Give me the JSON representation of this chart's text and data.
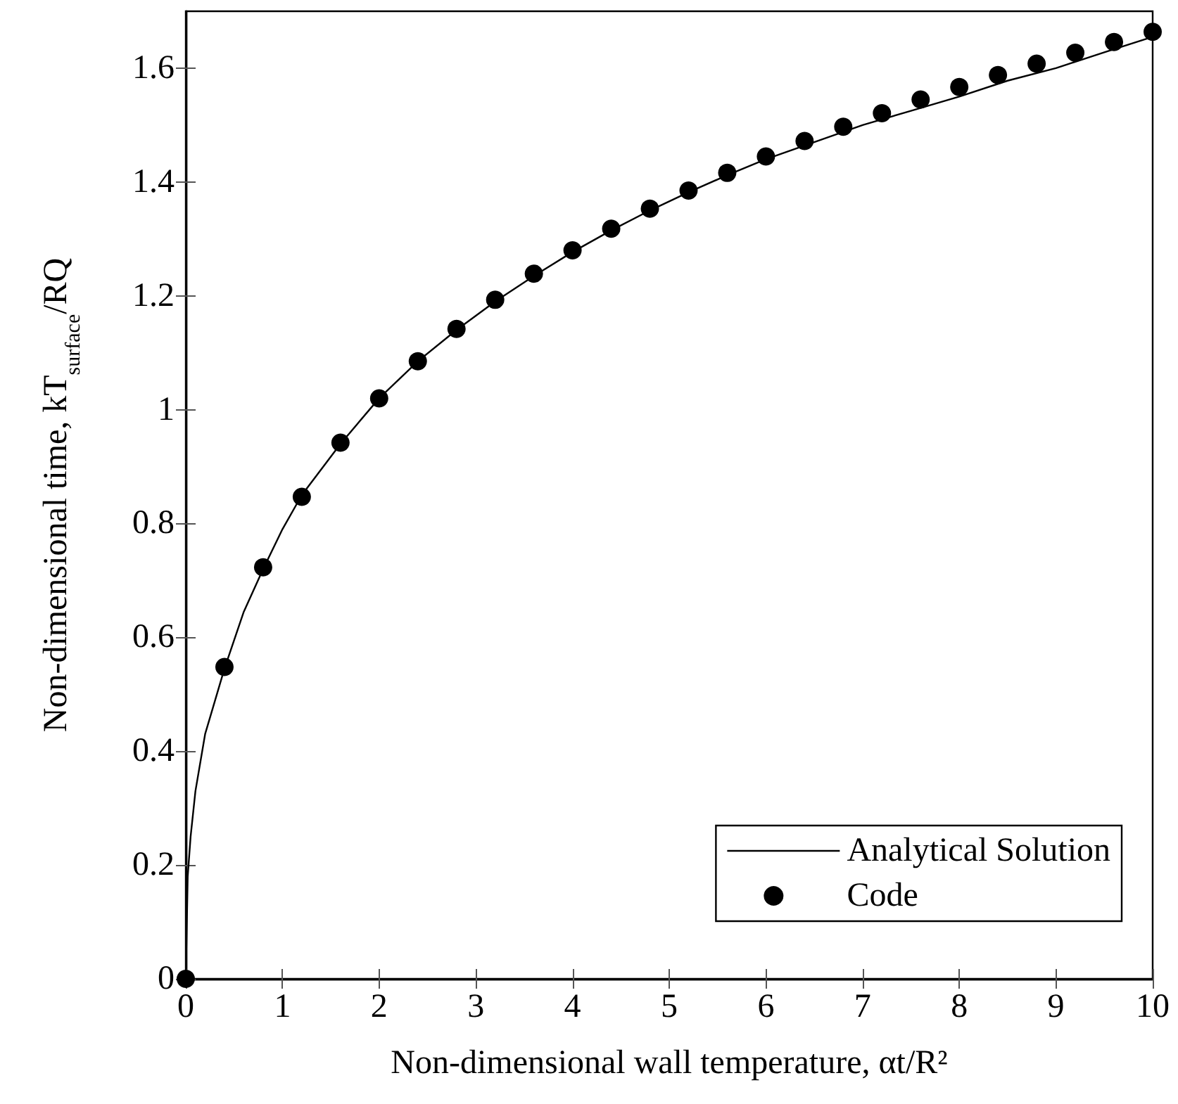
{
  "chart_data": {
    "type": "line",
    "xlabel": "Non-dimensional wall temperature, αt/R²",
    "ylabel": "Non-dimensional time, kT$_{surface}$/RQ",
    "xlim": [
      0,
      10
    ],
    "xticks": [
      0,
      1,
      2,
      3,
      4,
      5,
      6,
      7,
      8,
      9,
      10
    ],
    "ylim": [
      0,
      1.7
    ],
    "yticks": [
      0,
      0.2,
      0.4,
      0.6,
      0.8,
      1,
      1.2,
      1.4,
      1.6
    ],
    "grid": false,
    "legend": "bottom right",
    "series": [
      {
        "name": "Analytical Solution",
        "type": "line",
        "color": "#000000",
        "marker": "none",
        "line_style": "solid",
        "x": [
          0,
          0.02,
          0.05,
          0.1,
          0.2,
          0.4,
          0.6,
          0.8,
          1.0,
          1.2,
          1.6,
          2,
          2.4,
          2.8,
          3.2,
          3.6,
          4,
          4.4,
          4.8,
          5.2,
          5.6,
          6,
          6.5,
          7,
          7.5,
          8,
          8.5,
          9,
          9.5,
          10
        ],
        "values": [
          0,
          0.18,
          0.25,
          0.33,
          0.43,
          0.545,
          0.645,
          0.72,
          0.79,
          0.85,
          0.94,
          1.02,
          1.085,
          1.14,
          1.19,
          1.235,
          1.277,
          1.315,
          1.35,
          1.382,
          1.412,
          1.44,
          1.47,
          1.5,
          1.525,
          1.55,
          1.578,
          1.6,
          1.628,
          1.655
        ]
      },
      {
        "name": "Code",
        "type": "scatter",
        "color": "#000000",
        "marker": "circle",
        "x": [
          0,
          0.4,
          0.8,
          1.2,
          1.6,
          2,
          2.4,
          2.8,
          3.2,
          3.6,
          4,
          4.4,
          4.8,
          5.2,
          5.6,
          6,
          6.4,
          6.8,
          7.2,
          7.6,
          8,
          8.4,
          8.8,
          9.2,
          9.6,
          10
        ],
        "values": [
          0,
          0.548,
          0.723,
          0.847,
          0.942,
          1.02,
          1.085,
          1.142,
          1.193,
          1.239,
          1.28,
          1.318,
          1.353,
          1.385,
          1.416,
          1.445,
          1.472,
          1.497,
          1.521,
          1.545,
          1.567,
          1.588,
          1.608,
          1.627,
          1.646,
          1.664
        ]
      }
    ]
  }
}
